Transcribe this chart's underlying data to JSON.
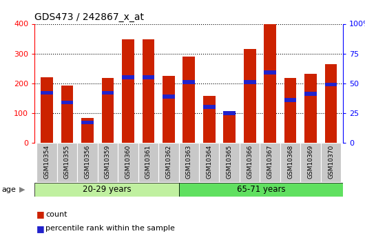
{
  "title": "GDS473 / 242867_x_at",
  "samples": [
    "GSM10354",
    "GSM10355",
    "GSM10356",
    "GSM10359",
    "GSM10360",
    "GSM10361",
    "GSM10362",
    "GSM10363",
    "GSM10364",
    "GSM10365",
    "GSM10366",
    "GSM10367",
    "GSM10368",
    "GSM10369",
    "GSM10370"
  ],
  "counts": [
    220,
    193,
    84,
    218,
    347,
    347,
    226,
    291,
    157,
    101,
    315,
    398,
    218,
    232,
    265
  ],
  "percentiles": [
    42,
    34,
    17,
    42,
    55,
    55,
    39,
    51,
    30,
    25,
    51,
    59,
    36,
    41,
    49
  ],
  "group1_label": "20-29 years",
  "group2_label": "65-71 years",
  "group1_count": 7,
  "group2_count": 8,
  "bar_color": "#cc2200",
  "pct_color": "#2222cc",
  "group1_bg": "#c0f0a0",
  "group2_bg": "#60e060",
  "tick_bg": "#c8c8c8",
  "legend_count_label": "count",
  "legend_pct_label": "percentile rank within the sample",
  "ylim_left": [
    0,
    400
  ],
  "ylim_right": [
    0,
    100
  ],
  "yticks_left": [
    0,
    100,
    200,
    300,
    400
  ],
  "yticks_right": [
    0,
    25,
    50,
    75,
    100
  ],
  "ytick_labels_right": [
    "0",
    "25",
    "50",
    "75",
    "100%"
  ],
  "bar_width": 0.6,
  "age_label": "age"
}
